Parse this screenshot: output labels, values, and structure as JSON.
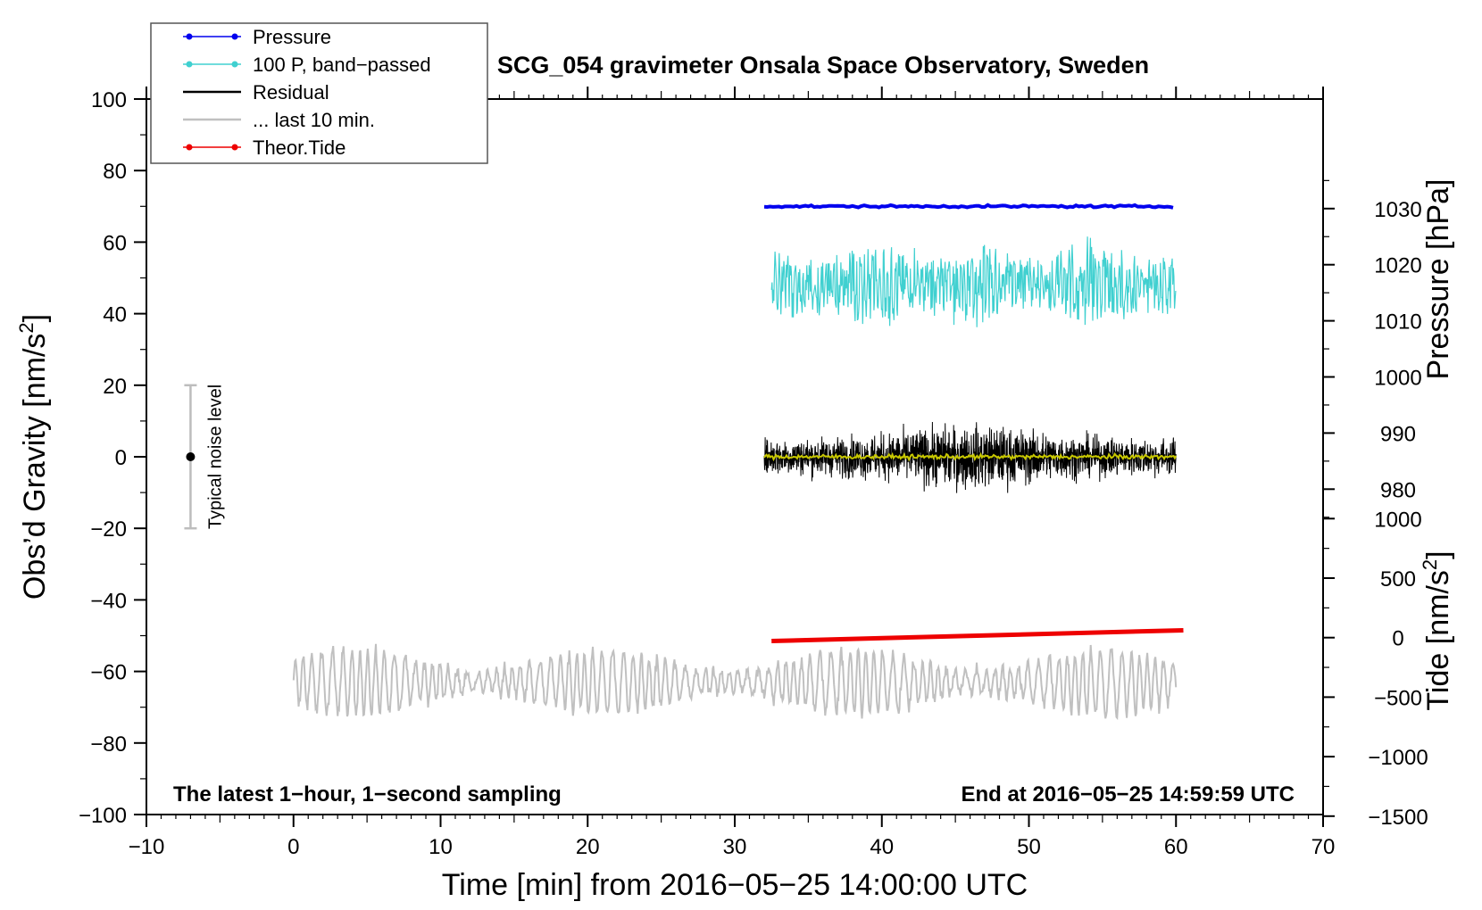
{
  "chart_data": {
    "type": "line",
    "title": "SCG_054 gravimeter Onsala Space Observatory, Sweden",
    "xlabel": "Time [min] from 2016−05−25 14:00:00 UTC",
    "ylabel": "Obs’d Gravity [nm/s",
    "ylabel_sup": "2",
    "ylabel_end": "]",
    "right_label_pressure": "Pressure [hPa]",
    "right_label_tide": "Tide [nm/s",
    "right_label_tide_sup": "2",
    "right_label_tide_end": "]",
    "note_left": "The latest 1−hour, 1−second sampling",
    "note_right": "End at 2016−05−25 14:59:59 UTC",
    "noise_label": "Typical noise level",
    "noise_bar": {
      "x": -7,
      "low": -20,
      "high": 20,
      "center": 0
    },
    "xlim": [
      -10,
      70
    ],
    "ylim": [
      -100,
      100
    ],
    "x_ticks": [
      "−10",
      "0",
      "10",
      "20",
      "30",
      "40",
      "50",
      "60",
      "70"
    ],
    "y_ticks": [
      "−100",
      "−80",
      "−60",
      "−40",
      "−20",
      "0",
      "20",
      "40",
      "60",
      "80",
      "100"
    ],
    "pressure_ticks": [
      "980",
      "990",
      "1000",
      "1010",
      "1020",
      "1030"
    ],
    "tide_ticks": [
      "−1500",
      "−1000",
      "−500",
      "0",
      "500",
      "1000"
    ],
    "legend_position": "top-left",
    "legend": [
      {
        "name": "Pressure",
        "color": "#0000ee",
        "marker": true
      },
      {
        "name": "100 P, band−passed",
        "color": "#40d0d0",
        "marker": true
      },
      {
        "name": "Residual",
        "color": "#000000",
        "marker": false
      },
      {
        "name": "... last 10 min.",
        "color": "#c0c0c0",
        "marker": false
      },
      {
        "name": "Theor.Tide",
        "color": "#ee0000",
        "marker": true
      }
    ],
    "series": [
      {
        "name": "Pressure",
        "color": "#0000ee",
        "x_range": [
          32,
          60
        ],
        "approx_level_on_left_axis": 70
      },
      {
        "name": "100 P, band−passed",
        "color": "#40d0d0",
        "x_range": [
          32.5,
          60
        ],
        "approx_center_on_left_axis": 48,
        "approx_amplitude": 8
      },
      {
        "name": "Residual",
        "color": "#000000",
        "x_range": [
          32,
          60
        ],
        "approx_center_on_left_axis": 0,
        "approx_amplitude": 5
      },
      {
        "name": "Residual smoothed",
        "color": "#c8c800",
        "x_range": [
          32,
          60
        ],
        "approx_center_on_left_axis": 0
      },
      {
        "name": "... last 10 min.",
        "color": "#c0c0c0",
        "x_range": [
          0,
          60
        ],
        "approx_center_on_left_axis": -63,
        "approx_amplitude": 6
      },
      {
        "name": "Theor.Tide",
        "color": "#ee0000",
        "x": [
          32.5,
          60.5
        ],
        "y_left_axis": [
          -51.5,
          -48.5
        ]
      }
    ]
  }
}
